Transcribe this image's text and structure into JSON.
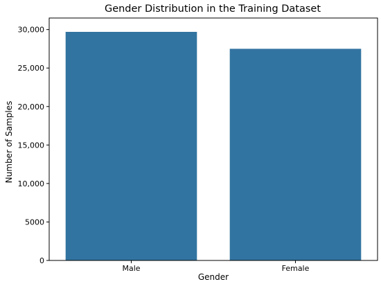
{
  "chart_data": {
    "type": "bar",
    "title": "Gender Distribution in the Training Dataset",
    "xlabel": "Gender",
    "ylabel": "Number of Samples",
    "categories": [
      "Male",
      "Female"
    ],
    "values": [
      29700,
      27500
    ],
    "ylim": [
      0,
      31500
    ],
    "yticks": [
      0,
      5000,
      10000,
      15000,
      20000,
      25000,
      30000
    ],
    "ytick_labels": [
      "0",
      "5000",
      "10,000",
      "15,000",
      "20,000",
      "25,000",
      "30,000"
    ],
    "grid": false,
    "bar_color": "#3274a1"
  }
}
